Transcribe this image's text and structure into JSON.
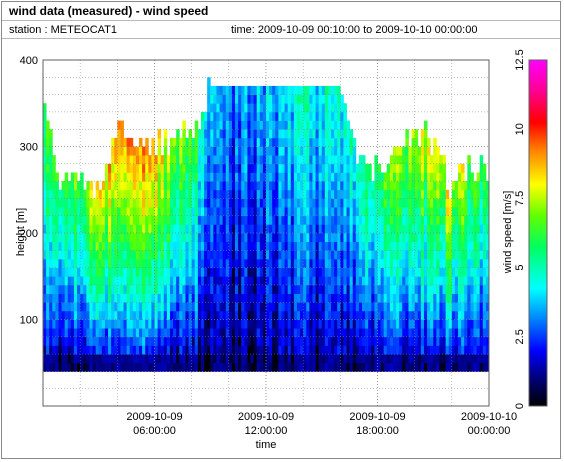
{
  "header": {
    "title": "wind data (measured) - wind speed",
    "station": "station : METEOCAT1",
    "time_range": "time: 2009-10-09 00:10:00 to 2009-10-10 00:00:00"
  },
  "chart_data": {
    "type": "heatmap",
    "xlabel": "time",
    "ylabel": "height [m]",
    "colorbar_label": "wind speed [m/s]",
    "x_range": [
      "2009-10-09 00:10:00",
      "2009-10-10 00:00:00"
    ],
    "x_ticks": [
      {
        "hour": 6,
        "line1": "2009-10-09",
        "line2": "06:00:00"
      },
      {
        "hour": 12,
        "line1": "2009-10-09",
        "line2": "12:00:00"
      },
      {
        "hour": 18,
        "line1": "2009-10-09",
        "line2": "18:00:00"
      },
      {
        "hour": 24,
        "line1": "2009-10-10",
        "line2": "00:00:00"
      }
    ],
    "ylim": [
      0,
      400
    ],
    "y_ticks": [
      "100",
      "200",
      "300",
      "400"
    ],
    "y_tick_values": [
      100,
      200,
      300,
      400
    ],
    "colorbar_range": [
      0,
      12.5
    ],
    "colorbar_ticks": [
      "0",
      "2.5",
      "5",
      "7.5",
      "10",
      "12.5"
    ],
    "colorbar_tick_values": [
      0,
      2.5,
      5,
      7.5,
      10,
      12.5
    ],
    "grid": true,
    "lowest_height_m": 40,
    "height_step_m": 10,
    "profiles": [
      {
        "t": 0.0,
        "top": 350,
        "low": 1.0,
        "high": 6.5
      },
      {
        "t": 1.0,
        "top": 240,
        "low": 1.0,
        "high": 6.0
      },
      {
        "t": 2.0,
        "top": 265,
        "low": 1.2,
        "high": 7.0
      },
      {
        "t": 3.0,
        "top": 240,
        "low": 1.2,
        "high": 8.0
      },
      {
        "t": 4.0,
        "top": 320,
        "low": 1.2,
        "high": 9.0
      },
      {
        "t": 5.0,
        "top": 300,
        "low": 1.3,
        "high": 9.0
      },
      {
        "t": 6.0,
        "top": 300,
        "low": 1.3,
        "high": 9.0
      },
      {
        "t": 7.0,
        "top": 300,
        "low": 1.3,
        "high": 7.5
      },
      {
        "t": 8.0,
        "top": 310,
        "low": 1.0,
        "high": 6.5
      },
      {
        "t": 9.0,
        "top": 360,
        "low": 0.9,
        "high": 4.0
      },
      {
        "t": 10.0,
        "top": 365,
        "low": 0.8,
        "high": 3.0
      },
      {
        "t": 11.0,
        "top": 365,
        "low": 0.8,
        "high": 3.5
      },
      {
        "t": 12.0,
        "top": 365,
        "low": 0.8,
        "high": 3.5
      },
      {
        "t": 13.0,
        "top": 365,
        "low": 0.9,
        "high": 4.0
      },
      {
        "t": 14.0,
        "top": 365,
        "low": 1.0,
        "high": 4.5
      },
      {
        "t": 15.0,
        "top": 365,
        "low": 1.0,
        "high": 4.5
      },
      {
        "t": 16.0,
        "top": 360,
        "low": 1.0,
        "high": 4.5
      },
      {
        "t": 17.0,
        "top": 280,
        "low": 1.0,
        "high": 5.0
      },
      {
        "t": 18.0,
        "top": 260,
        "low": 1.0,
        "high": 6.0
      },
      {
        "t": 19.0,
        "top": 300,
        "low": 1.0,
        "high": 7.0
      },
      {
        "t": 20.0,
        "top": 320,
        "low": 1.2,
        "high": 7.5
      },
      {
        "t": 21.0,
        "top": 300,
        "low": 1.2,
        "high": 8.0
      },
      {
        "t": 22.0,
        "top": 240,
        "low": 1.2,
        "high": 8.0
      },
      {
        "t": 23.0,
        "top": 280,
        "low": 1.2,
        "high": 7.0
      },
      {
        "t": 24.0,
        "top": 260,
        "low": 1.2,
        "high": 6.0
      }
    ]
  }
}
